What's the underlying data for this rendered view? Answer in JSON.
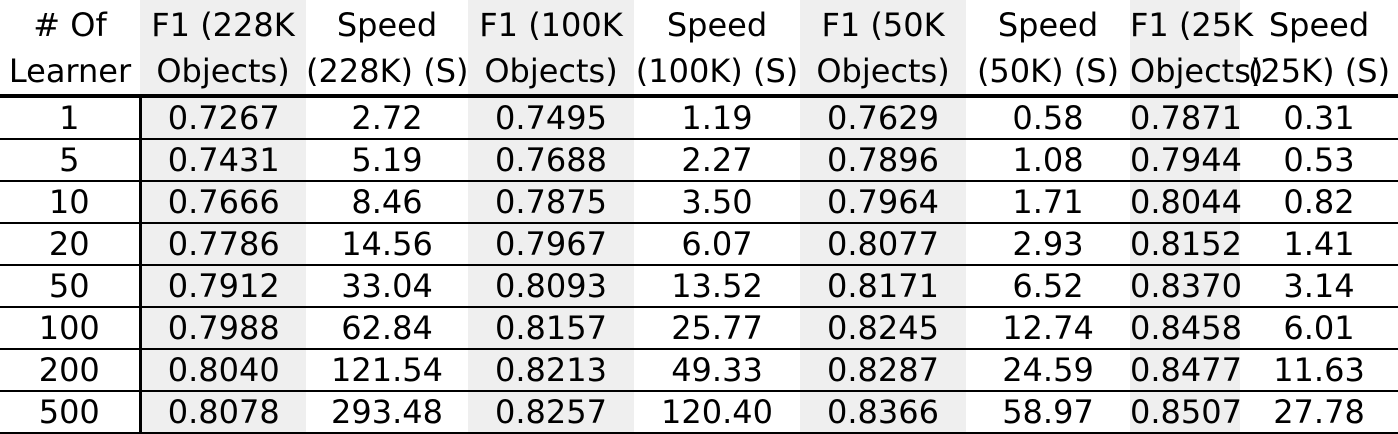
{
  "table": {
    "headers": [
      {
        "line1": "# Of",
        "line2": "Learner"
      },
      {
        "line1": "F1 (228K",
        "line2": "Objects)"
      },
      {
        "line1": "Speed",
        "line2": "(228K) (S)"
      },
      {
        "line1": "F1 (100K",
        "line2": "Objects)"
      },
      {
        "line1": "Speed",
        "line2": "(100K) (S)"
      },
      {
        "line1": "F1 (50K",
        "line2": "Objects)"
      },
      {
        "line1": "Speed",
        "line2": "(50K) (S)"
      },
      {
        "line1": "F1 (25K",
        "line2": "Objects)"
      },
      {
        "line1": "Speed",
        "line2": "(25K) (S)"
      }
    ],
    "rows": [
      [
        "1",
        "0.7267",
        "2.72",
        "0.7495",
        "1.19",
        "0.7629",
        "0.58",
        "0.7871",
        "0.31"
      ],
      [
        "5",
        "0.7431",
        "5.19",
        "0.7688",
        "2.27",
        "0.7896",
        "1.08",
        "0.7944",
        "0.53"
      ],
      [
        "10",
        "0.7666",
        "8.46",
        "0.7875",
        "3.50",
        "0.7964",
        "1.71",
        "0.8044",
        "0.82"
      ],
      [
        "20",
        "0.7786",
        "14.56",
        "0.7967",
        "6.07",
        "0.8077",
        "2.93",
        "0.8152",
        "1.41"
      ],
      [
        "50",
        "0.7912",
        "33.04",
        "0.8093",
        "13.52",
        "0.8171",
        "6.52",
        "0.8370",
        "3.14"
      ],
      [
        "100",
        "0.7988",
        "62.84",
        "0.8157",
        "25.77",
        "0.8245",
        "12.74",
        "0.8458",
        "6.01"
      ],
      [
        "200",
        "0.8040",
        "121.54",
        "0.8213",
        "49.33",
        "0.8287",
        "24.59",
        "0.8477",
        "11.63"
      ],
      [
        "500",
        "0.8078",
        "293.48",
        "0.8257",
        "120.40",
        "0.8366",
        "58.97",
        "0.8507",
        "27.78"
      ]
    ]
  },
  "colors": {
    "shaded_column_background": "#efefef",
    "rule": "#000000"
  }
}
